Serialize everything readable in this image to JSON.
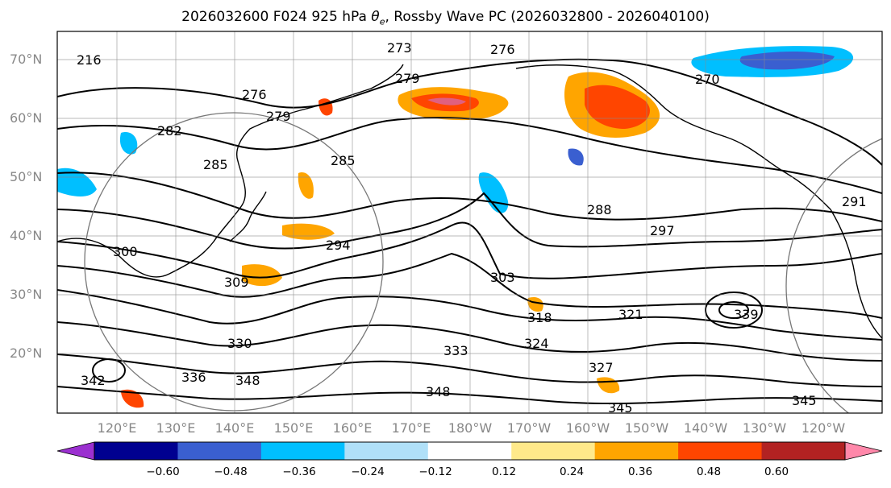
{
  "title_prefix": "2026032600 F024 925 hPa ",
  "title_symbol": "θ",
  "title_symbol_sub": "e",
  "title_suffix": ", Rossby Wave PC (2026032800 - 2026040100)",
  "lat_labels": [
    "70°N",
    "60°N",
    "50°N",
    "40°N",
    "30°N",
    "20°N"
  ],
  "lon_labels": [
    "120°E",
    "130°E",
    "140°E",
    "150°E",
    "160°E",
    "170°E",
    "180°W",
    "170°W",
    "160°W",
    "150°W",
    "140°W",
    "130°W",
    "120°W"
  ],
  "contour_labels": [
    "216",
    "276",
    "279",
    "276",
    "279",
    "273",
    "270",
    "282",
    "285",
    "285",
    "288",
    "297",
    "291",
    "294",
    "300",
    "309",
    "303",
    "318",
    "321",
    "324",
    "327",
    "330",
    "333",
    "336",
    "339",
    "342",
    "348",
    "348",
    "345",
    "345"
  ],
  "colorbar": {
    "colors": [
      "#9b30d0",
      "#000090",
      "#3a5fd0",
      "#00bfff",
      "#b0e0f8",
      "#ffffff",
      "#ffe98a",
      "#ffa500",
      "#ff4500",
      "#b22222",
      "#ff88aa"
    ],
    "ticks": [
      "−0.60",
      "−0.48",
      "−0.36",
      "−0.24",
      "−0.12",
      "0.12",
      "0.24",
      "0.36",
      "0.48",
      "0.60"
    ]
  }
}
